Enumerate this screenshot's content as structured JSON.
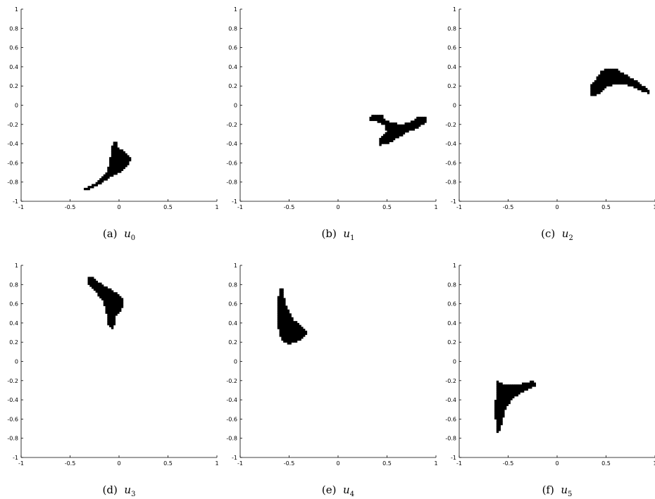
{
  "figure": {
    "panels": [
      {
        "id": "a",
        "prefix": "(a)",
        "symbol": "u",
        "subscript": "0"
      },
      {
        "id": "b",
        "prefix": "(b)",
        "symbol": "u",
        "subscript": "1"
      },
      {
        "id": "c",
        "prefix": "(c)",
        "symbol": "u",
        "subscript": "2"
      },
      {
        "id": "d",
        "prefix": "(d)",
        "symbol": "u",
        "subscript": "3"
      },
      {
        "id": "e",
        "prefix": "(e)",
        "symbol": "u",
        "subscript": "4"
      },
      {
        "id": "f",
        "prefix": "(f)",
        "symbol": "u",
        "subscript": "5"
      }
    ]
  },
  "chart_data": [
    {
      "type": "scatter",
      "title": "",
      "xlabel": "",
      "ylabel": "",
      "xlim": [
        -1,
        1
      ],
      "ylim": [
        -1,
        1
      ],
      "xticks": [
        "-1",
        "-0.5",
        "0",
        "0.5",
        "1"
      ],
      "yticks": [
        "-1",
        "-0.8",
        "-0.6",
        "-0.4",
        "-0.2",
        "0",
        "0.2",
        "0.4",
        "0.6",
        "0.8",
        "1"
      ],
      "region_outline": [
        [
          -0.35,
          -0.88
        ],
        [
          -0.3,
          -0.87
        ],
        [
          -0.2,
          -0.82
        ],
        [
          -0.1,
          -0.75
        ],
        [
          0.0,
          -0.7
        ],
        [
          0.05,
          -0.66
        ],
        [
          0.1,
          -0.6
        ],
        [
          0.12,
          -0.55
        ],
        [
          0.08,
          -0.5
        ],
        [
          0.04,
          -0.47
        ],
        [
          -0.01,
          -0.44
        ],
        [
          -0.02,
          -0.38
        ],
        [
          -0.06,
          -0.38
        ],
        [
          -0.08,
          -0.45
        ],
        [
          -0.09,
          -0.55
        ],
        [
          -0.12,
          -0.68
        ],
        [
          -0.2,
          -0.77
        ],
        [
          -0.27,
          -0.83
        ],
        [
          -0.35,
          -0.86
        ]
      ],
      "color": "#000000"
    },
    {
      "type": "scatter",
      "title": "",
      "xlabel": "",
      "ylabel": "",
      "xlim": [
        -1,
        1
      ],
      "ylim": [
        -1,
        1
      ],
      "xticks": [
        "-1",
        "-0.5",
        "0",
        "0.5",
        "1"
      ],
      "yticks": [
        "-1",
        "-0.8",
        "-0.6",
        "-0.4",
        "-0.2",
        "0",
        "0.2",
        "0.4",
        "0.6",
        "0.8",
        "1"
      ],
      "region_outline": [
        [
          0.37,
          -0.1
        ],
        [
          0.45,
          -0.1
        ],
        [
          0.47,
          -0.14
        ],
        [
          0.55,
          -0.18
        ],
        [
          0.65,
          -0.2
        ],
        [
          0.75,
          -0.17
        ],
        [
          0.82,
          -0.12
        ],
        [
          0.9,
          -0.13
        ],
        [
          0.9,
          -0.17
        ],
        [
          0.8,
          -0.24
        ],
        [
          0.7,
          -0.28
        ],
        [
          0.6,
          -0.34
        ],
        [
          0.5,
          -0.4
        ],
        [
          0.43,
          -0.41
        ],
        [
          0.43,
          -0.35
        ],
        [
          0.5,
          -0.28
        ],
        [
          0.47,
          -0.2
        ],
        [
          0.38,
          -0.16
        ],
        [
          0.32,
          -0.15
        ],
        [
          0.32,
          -0.12
        ]
      ],
      "color": "#000000"
    },
    {
      "type": "scatter",
      "title": "",
      "xlabel": "",
      "ylabel": "",
      "xlim": [
        -1,
        1
      ],
      "ylim": [
        -1,
        1
      ],
      "xticks": [
        "-1",
        "-0.5",
        "0",
        "0.5",
        "1"
      ],
      "yticks": [
        "-1",
        "-0.8",
        "-0.6",
        "-0.4",
        "-0.2",
        "0",
        "0.2",
        "0.4",
        "0.6",
        "0.8",
        "1"
      ],
      "region_outline": [
        [
          0.33,
          0.1
        ],
        [
          0.34,
          0.2
        ],
        [
          0.4,
          0.28
        ],
        [
          0.45,
          0.36
        ],
        [
          0.52,
          0.39
        ],
        [
          0.6,
          0.38
        ],
        [
          0.7,
          0.32
        ],
        [
          0.8,
          0.26
        ],
        [
          0.88,
          0.2
        ],
        [
          0.95,
          0.15
        ],
        [
          0.95,
          0.12
        ],
        [
          0.88,
          0.14
        ],
        [
          0.78,
          0.19
        ],
        [
          0.68,
          0.22
        ],
        [
          0.58,
          0.22
        ],
        [
          0.5,
          0.19
        ],
        [
          0.45,
          0.14
        ],
        [
          0.38,
          0.1
        ]
      ],
      "color": "#000000"
    },
    {
      "type": "scatter",
      "title": "",
      "xlabel": "",
      "ylabel": "",
      "xlim": [
        -1,
        1
      ],
      "ylim": [
        -1,
        1
      ],
      "xticks": [
        "-1",
        "-0.5",
        "0",
        "0.5",
        "1"
      ],
      "yticks": [
        "-1",
        "-0.8",
        "-0.6",
        "-0.4",
        "-0.2",
        "0",
        "0.2",
        "0.4",
        "0.6",
        "0.8",
        "1"
      ],
      "region_outline": [
        [
          -0.32,
          0.88
        ],
        [
          -0.26,
          0.88
        ],
        [
          -0.2,
          0.82
        ],
        [
          -0.1,
          0.76
        ],
        [
          -0.02,
          0.71
        ],
        [
          0.04,
          0.66
        ],
        [
          0.05,
          0.6
        ],
        [
          0.02,
          0.54
        ],
        [
          -0.04,
          0.46
        ],
        [
          -0.05,
          0.37
        ],
        [
          -0.08,
          0.34
        ],
        [
          -0.12,
          0.4
        ],
        [
          -0.13,
          0.5
        ],
        [
          -0.16,
          0.62
        ],
        [
          -0.24,
          0.73
        ],
        [
          -0.32,
          0.8
        ]
      ],
      "color": "#000000"
    },
    {
      "type": "scatter",
      "title": "",
      "xlabel": "",
      "ylabel": "",
      "xlim": [
        -1,
        1
      ],
      "ylim": [
        -1,
        1
      ],
      "xticks": [
        "-1",
        "-0.5",
        "0",
        "0.5",
        "1"
      ],
      "yticks": [
        "-1",
        "-0.8",
        "-0.6",
        "-0.4",
        "-0.2",
        "0",
        "0.2",
        "0.4",
        "0.6",
        "0.8",
        "1"
      ],
      "region_outline": [
        [
          -0.6,
          0.77
        ],
        [
          -0.57,
          0.76
        ],
        [
          -0.55,
          0.66
        ],
        [
          -0.52,
          0.55
        ],
        [
          -0.45,
          0.43
        ],
        [
          -0.36,
          0.36
        ],
        [
          -0.32,
          0.3
        ],
        [
          -0.36,
          0.25
        ],
        [
          -0.42,
          0.21
        ],
        [
          -0.5,
          0.18
        ],
        [
          -0.56,
          0.21
        ],
        [
          -0.6,
          0.27
        ],
        [
          -0.62,
          0.4
        ],
        [
          -0.62,
          0.6
        ]
      ],
      "color": "#000000"
    },
    {
      "type": "scatter",
      "title": "",
      "xlabel": "",
      "ylabel": "",
      "xlim": [
        -1,
        1
      ],
      "ylim": [
        -1,
        1
      ],
      "xticks": [
        "-1",
        "-0.5",
        "0",
        "0.5",
        "1"
      ],
      "yticks": [
        "-1",
        "-0.8",
        "-0.6",
        "-0.4",
        "-0.2",
        "0",
        "0.2",
        "0.4",
        "0.6",
        "0.8",
        "1"
      ],
      "region_outline": [
        [
          -0.62,
          -0.2
        ],
        [
          -0.58,
          -0.22
        ],
        [
          -0.5,
          -0.25
        ],
        [
          -0.4,
          -0.24
        ],
        [
          -0.32,
          -0.22
        ],
        [
          -0.25,
          -0.2
        ],
        [
          -0.21,
          -0.25
        ],
        [
          -0.28,
          -0.28
        ],
        [
          -0.38,
          -0.33
        ],
        [
          -0.47,
          -0.4
        ],
        [
          -0.53,
          -0.5
        ],
        [
          -0.56,
          -0.62
        ],
        [
          -0.58,
          -0.72
        ],
        [
          -0.62,
          -0.75
        ],
        [
          -0.63,
          -0.6
        ],
        [
          -0.63,
          -0.4
        ]
      ],
      "color": "#000000"
    }
  ]
}
